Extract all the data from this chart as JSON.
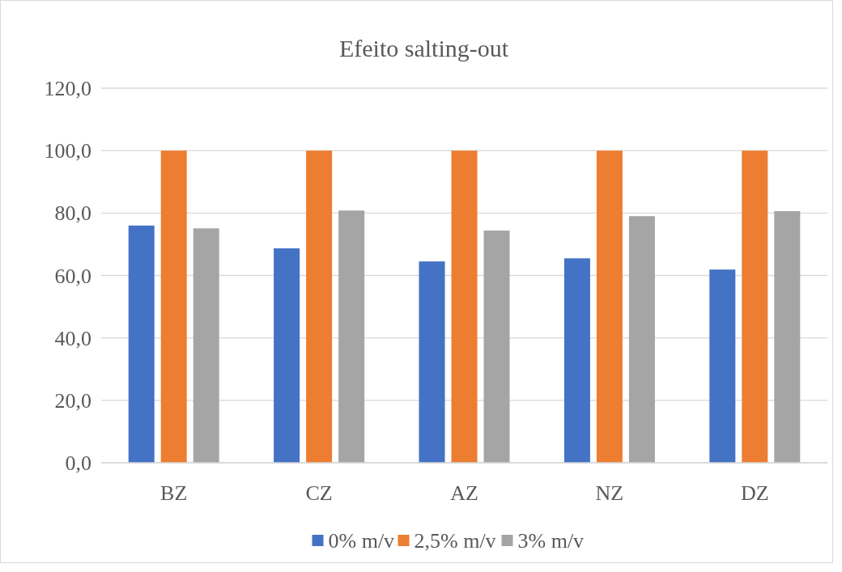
{
  "chart_data": {
    "type": "bar",
    "title": "Efeito salting-out",
    "categories": [
      "BZ",
      "CZ",
      "AZ",
      "NZ",
      "DZ"
    ],
    "series": [
      {
        "name": "0% m/v",
        "color": "#4472c4",
        "values": [
          76.0,
          68.7,
          64.5,
          65.5,
          61.9
        ]
      },
      {
        "name": "2,5% m/v",
        "color": "#ed7d31",
        "values": [
          100.0,
          100.0,
          100.0,
          100.0,
          100.0
        ]
      },
      {
        "name": "3% m/v",
        "color": "#a5a5a5",
        "values": [
          75.1,
          80.8,
          74.4,
          79.0,
          80.6
        ]
      }
    ],
    "ylim": [
      0,
      120
    ],
    "yticks": [
      {
        "value": 0,
        "label": "0,0"
      },
      {
        "value": 20,
        "label": "20,0"
      },
      {
        "value": 40,
        "label": "40,0"
      },
      {
        "value": 60,
        "label": "60,0"
      },
      {
        "value": 80,
        "label": "80,0"
      },
      {
        "value": 100,
        "label": "100,0"
      },
      {
        "value": 120,
        "label": "120,0"
      }
    ],
    "grid": "y",
    "legend": "bottom"
  }
}
